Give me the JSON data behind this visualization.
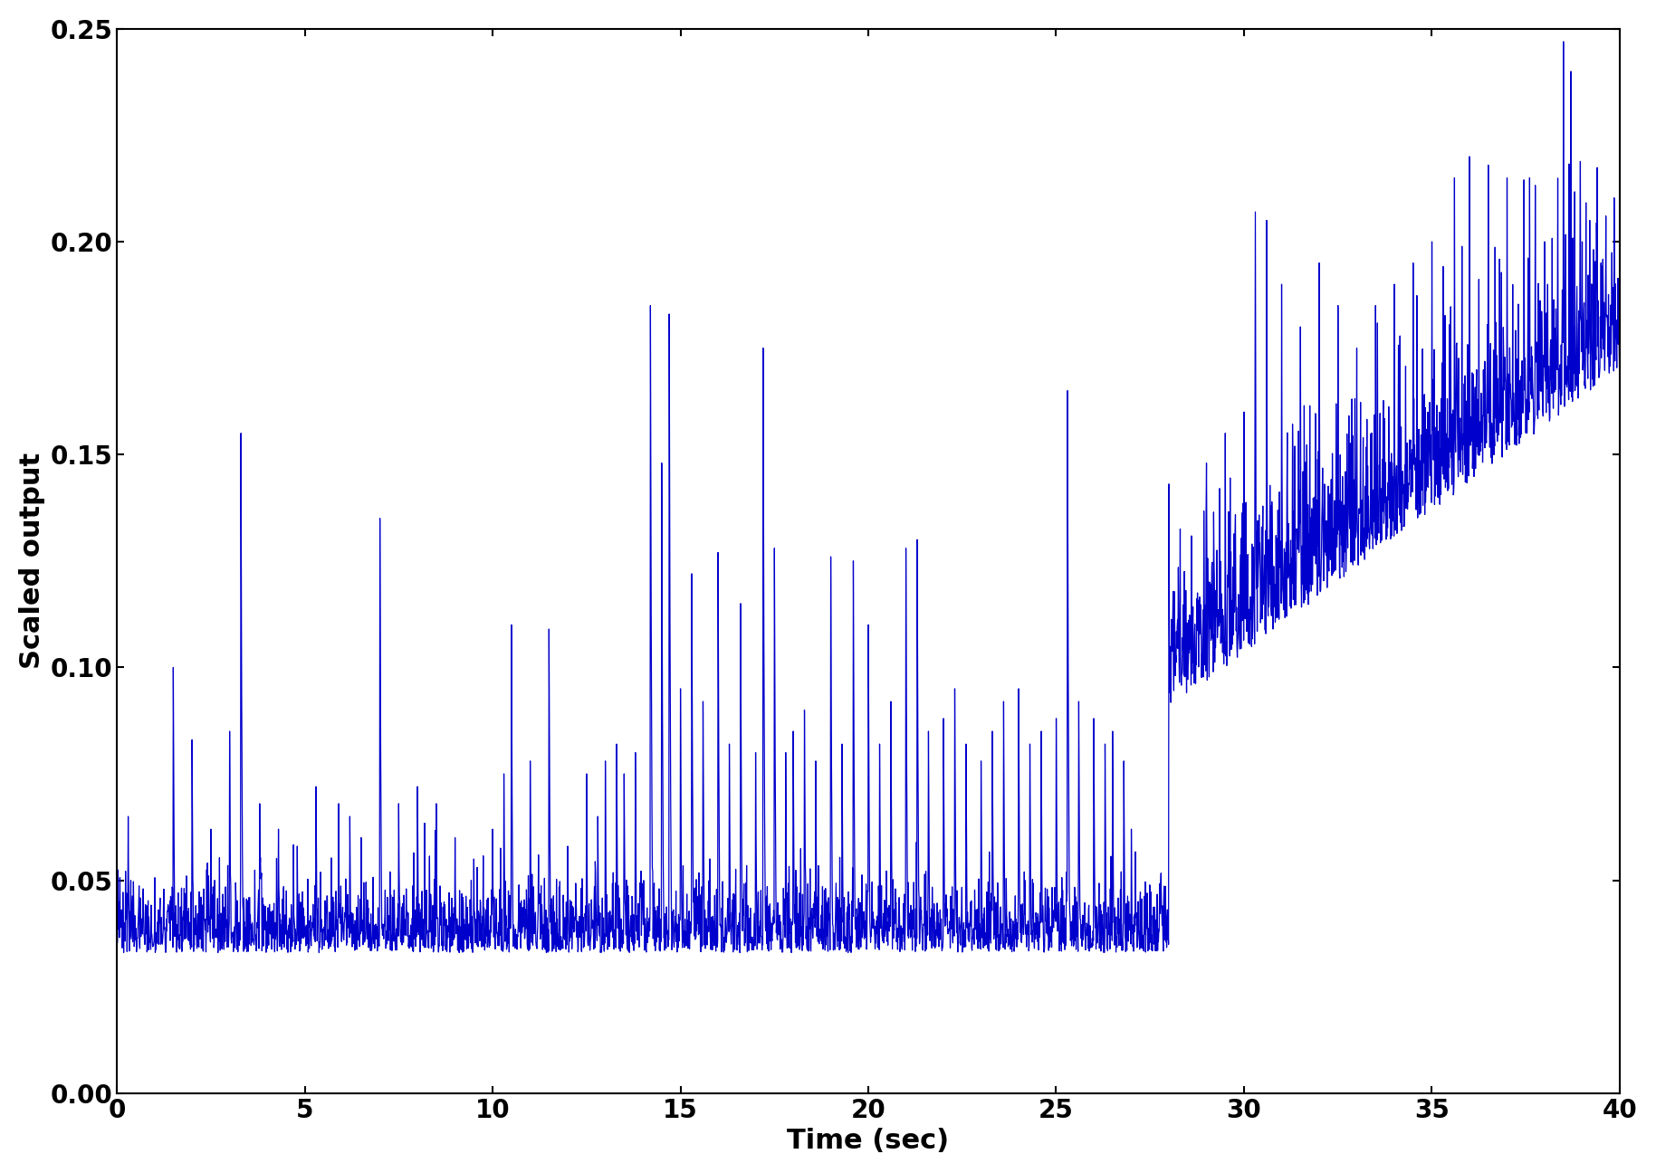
{
  "title": "",
  "xlabel": "Time (sec)",
  "ylabel": "Scaled output",
  "xlim": [
    0,
    40
  ],
  "ylim": [
    0,
    0.25
  ],
  "xticks": [
    0,
    5,
    10,
    15,
    20,
    25,
    30,
    35,
    40
  ],
  "yticks": [
    0,
    0.05,
    0.1,
    0.15,
    0.2,
    0.25
  ],
  "line_color": "#0000cc",
  "line_width": 0.9,
  "background_color": "#ffffff",
  "xlabel_fontsize": 22,
  "ylabel_fontsize": 22,
  "tick_fontsize": 20,
  "figsize": [
    18.29,
    12.96
  ],
  "dpi": 100
}
